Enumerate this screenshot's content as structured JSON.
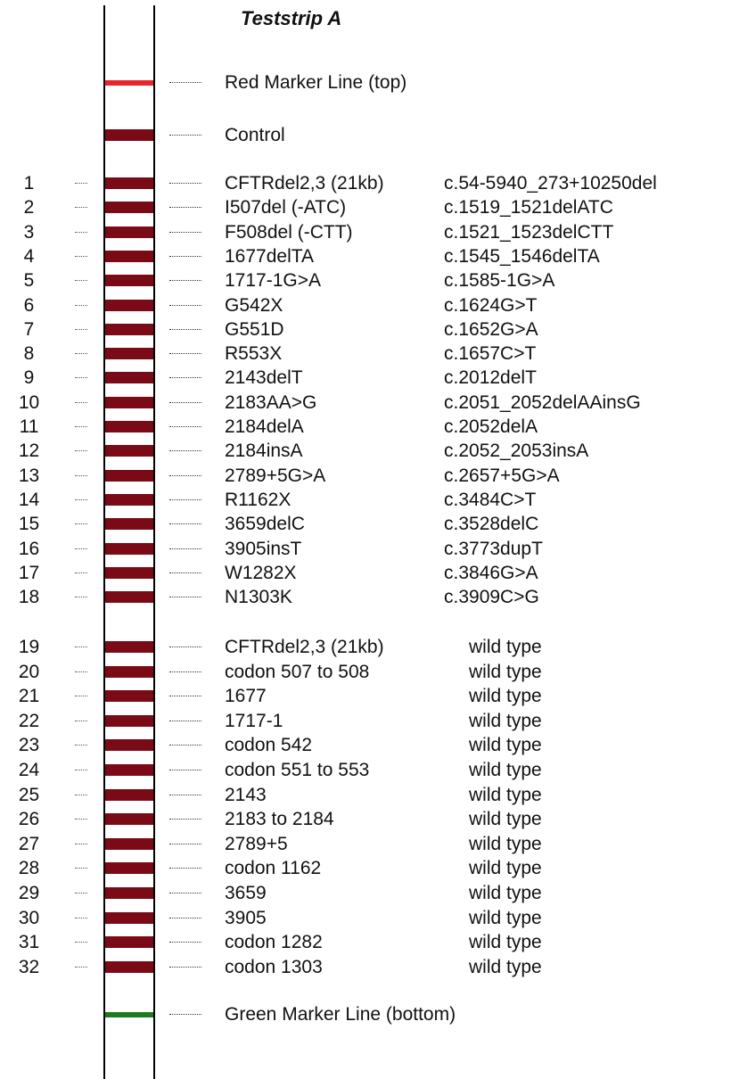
{
  "title": "Teststrip A",
  "colors": {
    "red_marker": "#e8262c",
    "band": "#7b0a17",
    "green_marker": "#1e7a1e"
  },
  "markers": {
    "top": {
      "label": "Red Marker Line (top)"
    },
    "control": {
      "label": "Control"
    },
    "bottom": {
      "label": "Green Marker Line (bottom)"
    }
  },
  "mutations": [
    {
      "num": "1",
      "name": "CFTRdel2,3 (21kb)",
      "hgvs": "c.54-5940_273+10250del"
    },
    {
      "num": "2",
      "name": "I507del (-ATC)",
      "hgvs": "c.1519_1521delATC"
    },
    {
      "num": "3",
      "name": "F508del (-CTT)",
      "hgvs": "c.1521_1523delCTT"
    },
    {
      "num": "4",
      "name": "1677delTA",
      "hgvs": "c.1545_1546delTA"
    },
    {
      "num": "5",
      "name": "1717-1G>A",
      "hgvs": "c.1585-1G>A"
    },
    {
      "num": "6",
      "name": "G542X",
      "hgvs": "c.1624G>T"
    },
    {
      "num": "7",
      "name": "G551D",
      "hgvs": "c.1652G>A"
    },
    {
      "num": "8",
      "name": "R553X",
      "hgvs": "c.1657C>T"
    },
    {
      "num": "9",
      "name": "2143delT",
      "hgvs": "c.2012delT"
    },
    {
      "num": "10",
      "name": "2183AA>G",
      "hgvs": "c.2051_2052delAAinsG"
    },
    {
      "num": "11",
      "name": "2184delA",
      "hgvs": "c.2052delA"
    },
    {
      "num": "12",
      "name": "2184insA",
      "hgvs": "c.2052_2053insA"
    },
    {
      "num": "13",
      "name": "2789+5G>A",
      "hgvs": "c.2657+5G>A"
    },
    {
      "num": "14",
      "name": "R1162X",
      "hgvs": "c.3484C>T"
    },
    {
      "num": "15",
      "name": "3659delC",
      "hgvs": "c.3528delC"
    },
    {
      "num": "16",
      "name": "3905insT",
      "hgvs": "c.3773dupT"
    },
    {
      "num": "17",
      "name": "W1282X",
      "hgvs": "c.3846G>A"
    },
    {
      "num": "18",
      "name": "N1303K",
      "hgvs": "c.3909C>G"
    }
  ],
  "wildtypes": [
    {
      "num": "19",
      "name": "CFTRdel2,3 (21kb)",
      "status": "wild type"
    },
    {
      "num": "20",
      "name": "codon 507 to 508",
      "status": "wild type"
    },
    {
      "num": "21",
      "name": "1677",
      "status": "wild type"
    },
    {
      "num": "22",
      "name": "1717-1",
      "status": "wild type"
    },
    {
      "num": "23",
      "name": "codon 542",
      "status": "wild type"
    },
    {
      "num": "24",
      "name": "codon 551 to 553",
      "status": "wild type"
    },
    {
      "num": "25",
      "name": "2143",
      "status": "wild type"
    },
    {
      "num": "26",
      "name": "2183 to 2184",
      "status": "wild type"
    },
    {
      "num": "27",
      "name": "2789+5",
      "status": "wild type"
    },
    {
      "num": "28",
      "name": "codon 1162",
      "status": "wild type"
    },
    {
      "num": "29",
      "name": "3659",
      "status": "wild type"
    },
    {
      "num": "30",
      "name": "3905",
      "status": "wild type"
    },
    {
      "num": "31",
      "name": "codon 1282",
      "status": "wild type"
    },
    {
      "num": "32",
      "name": "codon 1303",
      "status": "wild type"
    }
  ]
}
